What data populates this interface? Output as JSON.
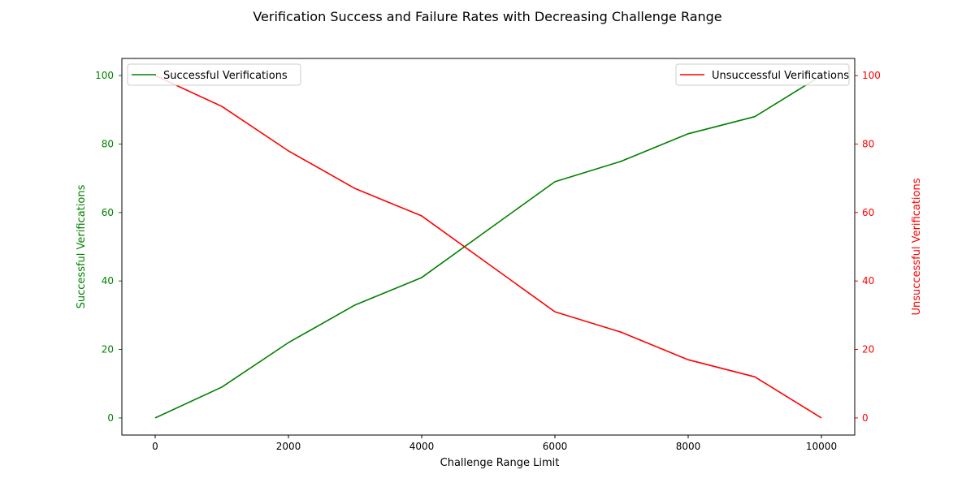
{
  "chart_data": {
    "type": "line",
    "title": "Verification Success and Failure Rates with Decreasing Challenge Range",
    "xlabel": "Challenge Range Limit",
    "ylabel_left": "Successful Verifications",
    "ylabel_right": "Unsuccessful Verifications",
    "x": [
      0,
      1000,
      2000,
      3000,
      4000,
      5000,
      6000,
      7000,
      8000,
      9000,
      10000
    ],
    "xlim": [
      -500,
      10500
    ],
    "ylim_left": [
      -5,
      105
    ],
    "ylim_right": [
      -5,
      105
    ],
    "xticks": [
      0,
      2000,
      4000,
      6000,
      8000,
      10000
    ],
    "yticks_left": [
      0,
      20,
      40,
      60,
      80,
      100
    ],
    "yticks_right": [
      0,
      20,
      40,
      60,
      80,
      100
    ],
    "series": [
      {
        "name": "Successful Verifications",
        "axis": "left",
        "color": "#008000",
        "values": [
          0,
          9,
          22,
          33,
          41,
          55,
          69,
          75,
          83,
          88,
          100
        ]
      },
      {
        "name": "Unsuccessful Verifications",
        "axis": "right",
        "color": "#ff0000",
        "values": [
          100,
          91,
          78,
          67,
          59,
          45,
          31,
          25,
          17,
          12,
          0
        ]
      }
    ],
    "legends": [
      {
        "series": 0,
        "placement": "upper-left"
      },
      {
        "series": 1,
        "placement": "upper-right"
      }
    ],
    "grid": false
  }
}
